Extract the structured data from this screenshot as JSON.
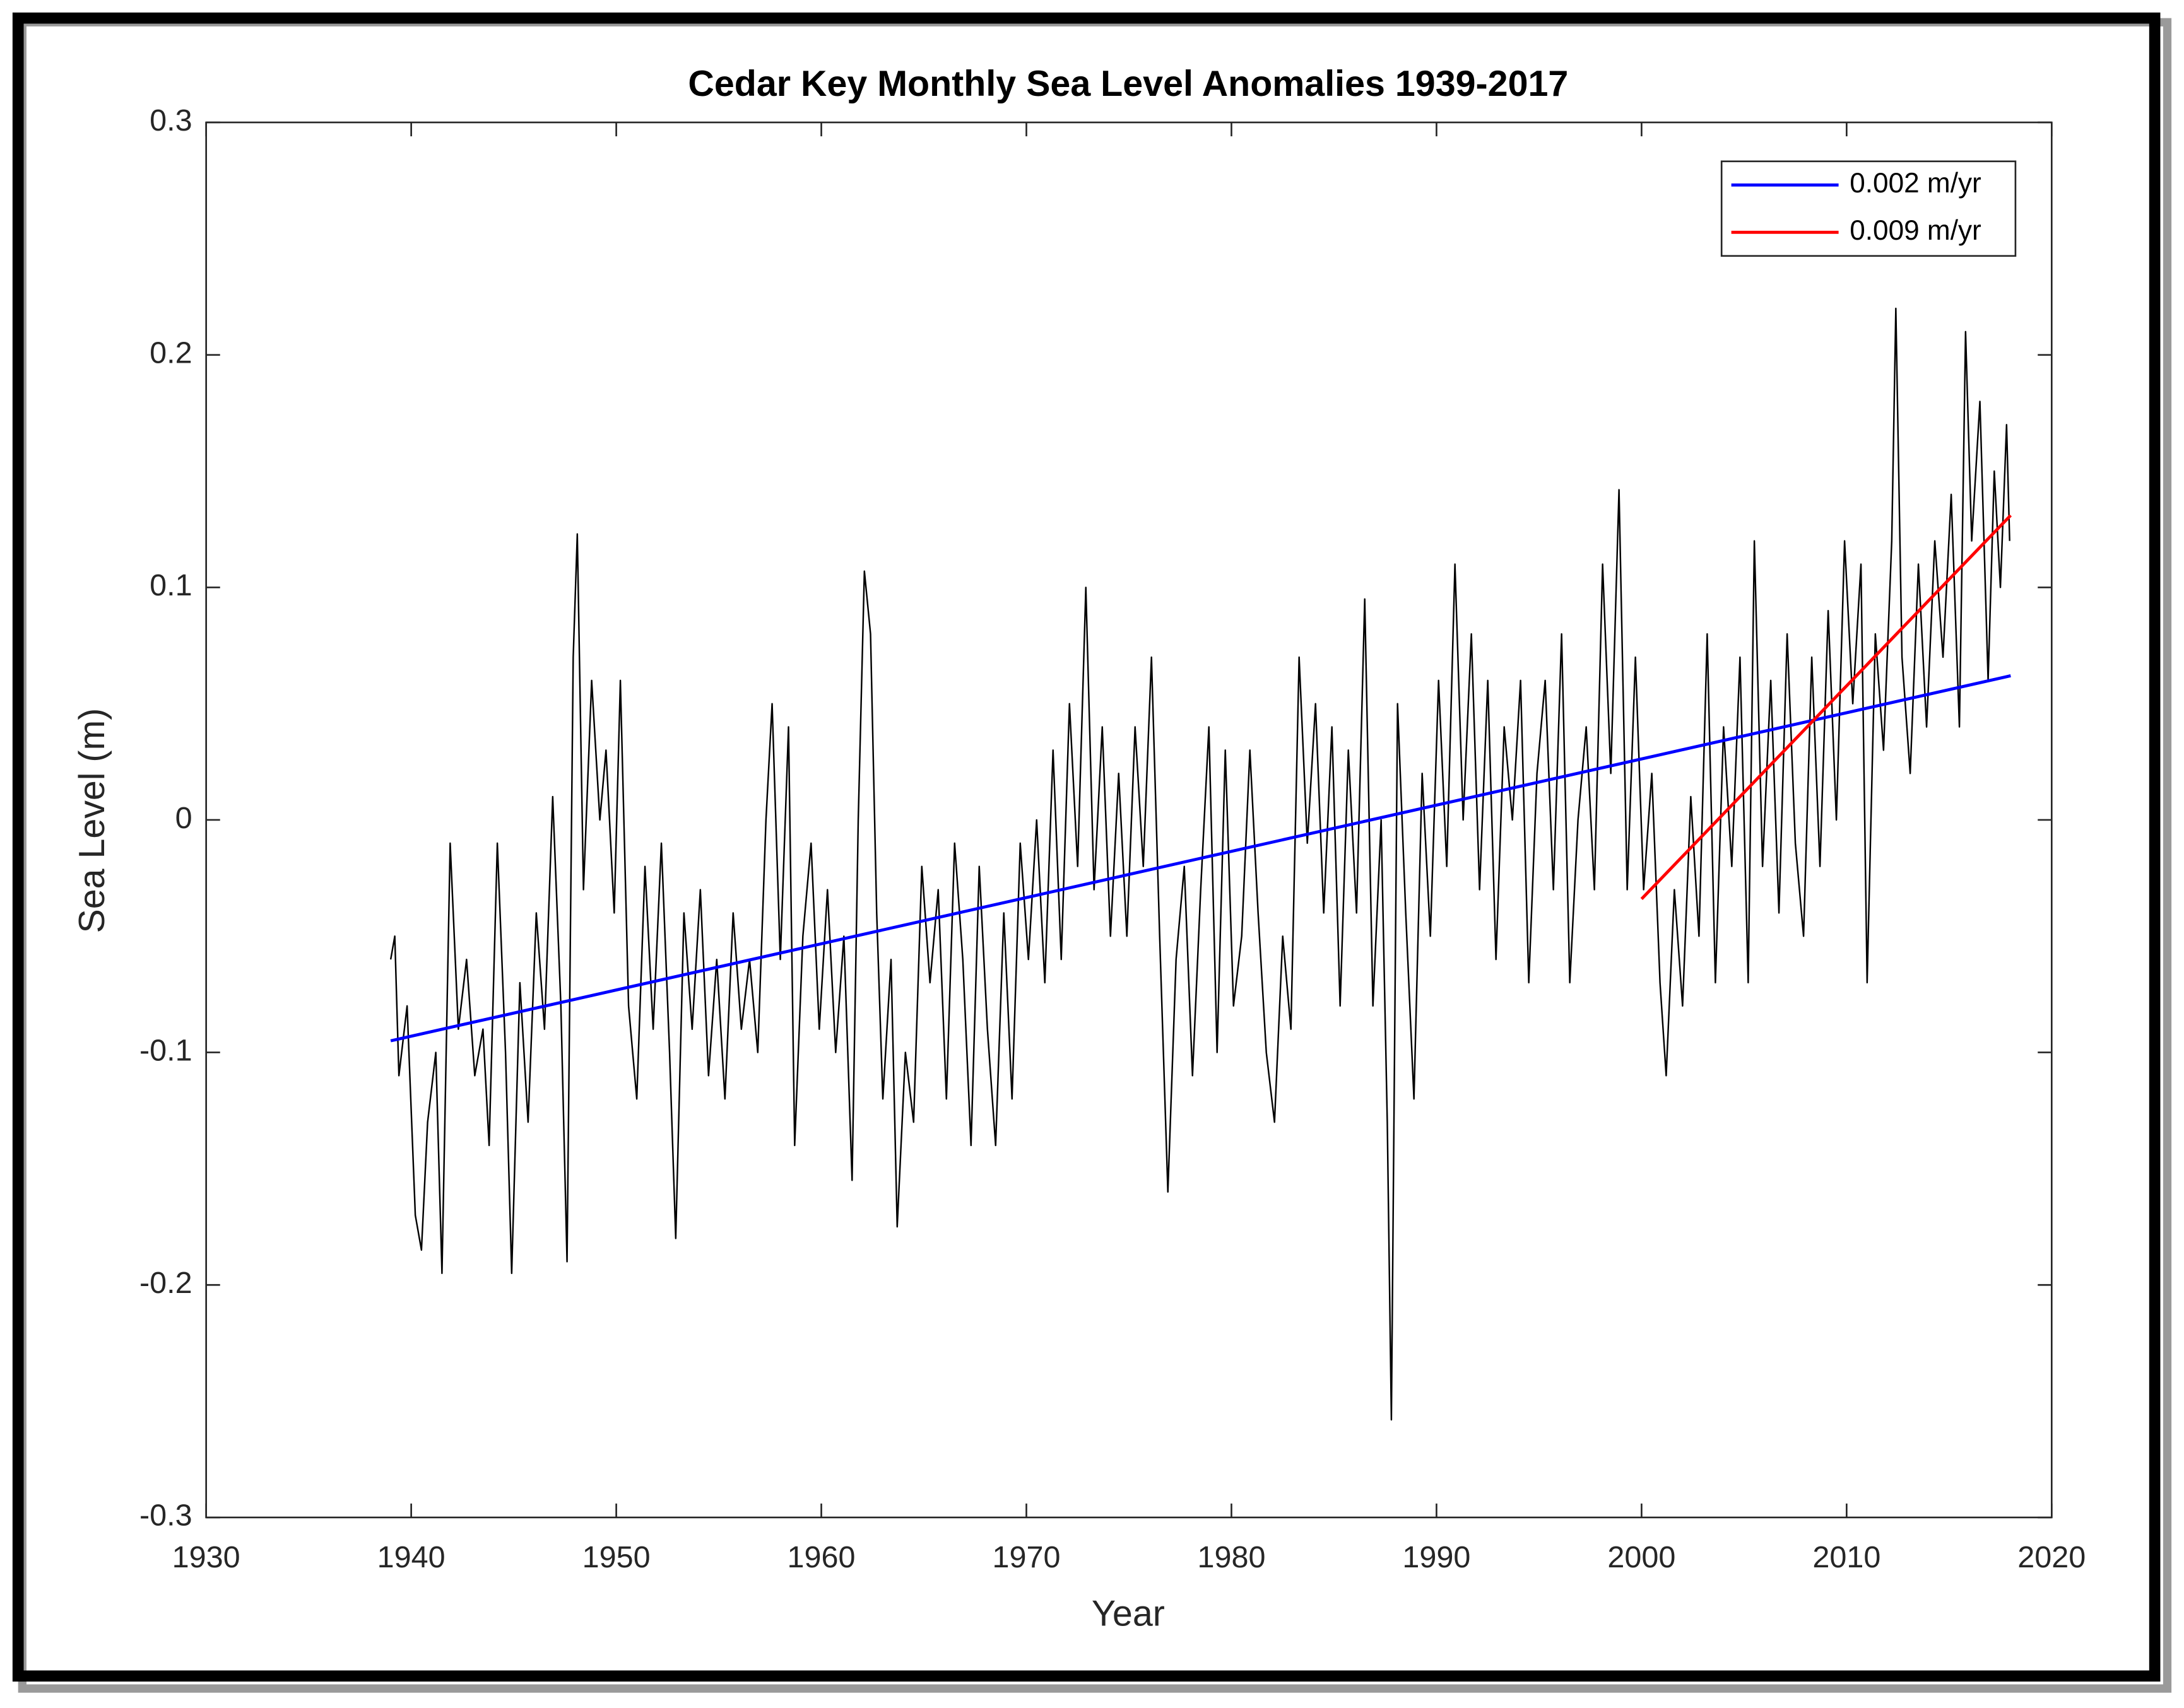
{
  "chart_data": {
    "type": "line",
    "title": "Cedar Key Monthly Sea Level Anomalies 1939-2017",
    "xlabel": "Year",
    "ylabel": "Sea Level (m)",
    "xlim": [
      1930,
      2020
    ],
    "xticks": [
      1930,
      1940,
      1950,
      1960,
      1970,
      1980,
      1990,
      2000,
      2010,
      2020
    ],
    "ylim": [
      -0.3,
      0.3
    ],
    "yticks": [
      -0.3,
      -0.2,
      -0.1,
      0,
      0.1,
      0.2,
      0.3
    ],
    "legend": "upper right",
    "series": [
      {
        "color": "#000000",
        "x": [
          1939.0,
          1939.2,
          1939.4,
          1939.8,
          1940.2,
          1940.5,
          1940.8,
          1941.2,
          1941.5,
          1941.9,
          1942.3,
          1942.7,
          1943.1,
          1943.5,
          1943.8,
          1944.2,
          1944.6,
          1944.9,
          1945.3,
          1945.7,
          1946.1,
          1946.5,
          1946.9,
          1947.3,
          1947.6,
          1947.9,
          1948.1,
          1948.4,
          1948.8,
          1949.2,
          1949.5,
          1949.9,
          1950.2,
          1950.6,
          1951.0,
          1951.4,
          1951.8,
          1952.2,
          1952.6,
          1952.9,
          1953.3,
          1953.7,
          1954.1,
          1954.5,
          1954.9,
          1955.3,
          1955.7,
          1956.1,
          1956.5,
          1956.9,
          1957.3,
          1957.6,
          1958.0,
          1958.4,
          1958.7,
          1959.1,
          1959.5,
          1959.9,
          1960.3,
          1960.7,
          1961.1,
          1961.5,
          1961.8,
          1962.1,
          1962.4,
          1962.7,
          1963.0,
          1963.4,
          1963.7,
          1964.1,
          1964.5,
          1964.9,
          1965.3,
          1965.7,
          1966.1,
          1966.5,
          1966.9,
          1967.3,
          1967.7,
          1968.1,
          1968.5,
          1968.9,
          1969.3,
          1969.7,
          1970.1,
          1970.5,
          1970.9,
          1971.3,
          1971.7,
          1972.1,
          1972.5,
          1972.9,
          1973.3,
          1973.7,
          1974.1,
          1974.5,
          1974.9,
          1975.3,
          1975.7,
          1976.1,
          1976.5,
          1976.9,
          1977.3,
          1977.7,
          1978.1,
          1978.5,
          1978.9,
          1979.3,
          1979.7,
          1980.1,
          1980.5,
          1980.9,
          1981.3,
          1981.7,
          1982.1,
          1982.5,
          1982.9,
          1983.3,
          1983.7,
          1984.1,
          1984.5,
          1984.9,
          1985.3,
          1985.7,
          1986.1,
          1986.5,
          1986.9,
          1987.3,
          1987.6,
          1987.8,
          1988.1,
          1988.5,
          1988.9,
          1989.3,
          1989.7,
          1990.1,
          1990.5,
          1990.9,
          1991.3,
          1991.7,
          1992.1,
          1992.5,
          1992.9,
          1993.3,
          1993.7,
          1994.1,
          1994.5,
          1994.9,
          1995.3,
          1995.7,
          1996.1,
          1996.5,
          1996.9,
          1997.3,
          1997.7,
          1998.1,
          1998.5,
          1998.9,
          1999.3,
          1999.7,
          2000.1,
          2000.5,
          2000.9,
          2001.2,
          2001.6,
          2002.0,
          2002.4,
          2002.8,
          2003.2,
          2003.6,
          2004.0,
          2004.4,
          2004.8,
          2005.2,
          2005.5,
          2005.9,
          2006.3,
          2006.7,
          2007.1,
          2007.5,
          2007.9,
          2008.3,
          2008.7,
          2009.1,
          2009.5,
          2009.9,
          2010.3,
          2010.7,
          2011.0,
          2011.4,
          2011.8,
          2012.2,
          2012.4,
          2012.7,
          2013.1,
          2013.5,
          2013.9,
          2014.3,
          2014.7,
          2015.1,
          2015.5,
          2015.8,
          2016.1,
          2016.5,
          2016.9,
          2017.2,
          2017.5,
          2017.8,
          2017.95
        ],
        "values": [
          -0.06,
          -0.05,
          -0.11,
          -0.08,
          -0.17,
          -0.185,
          -0.13,
          -0.1,
          -0.195,
          -0.01,
          -0.09,
          -0.06,
          -0.11,
          -0.09,
          -0.14,
          -0.01,
          -0.1,
          -0.195,
          -0.07,
          -0.13,
          -0.04,
          -0.09,
          0.01,
          -0.08,
          -0.19,
          0.07,
          0.123,
          -0.03,
          0.06,
          0.0,
          0.03,
          -0.04,
          0.06,
          -0.08,
          -0.12,
          -0.02,
          -0.09,
          -0.01,
          -0.1,
          -0.18,
          -0.04,
          -0.09,
          -0.03,
          -0.11,
          -0.06,
          -0.12,
          -0.04,
          -0.09,
          -0.06,
          -0.1,
          0.0,
          0.05,
          -0.06,
          0.04,
          -0.14,
          -0.05,
          -0.01,
          -0.09,
          -0.03,
          -0.1,
          -0.05,
          -0.155,
          0.0,
          0.107,
          0.08,
          -0.04,
          -0.12,
          -0.06,
          -0.175,
          -0.1,
          -0.13,
          -0.02,
          -0.07,
          -0.03,
          -0.12,
          -0.01,
          -0.06,
          -0.14,
          -0.02,
          -0.09,
          -0.14,
          -0.04,
          -0.12,
          -0.01,
          -0.06,
          0.0,
          -0.07,
          0.03,
          -0.06,
          0.05,
          -0.02,
          0.1,
          -0.03,
          0.04,
          -0.05,
          0.02,
          -0.05,
          0.04,
          -0.02,
          0.07,
          -0.05,
          -0.16,
          -0.06,
          -0.02,
          -0.11,
          -0.03,
          0.04,
          -0.1,
          0.03,
          -0.08,
          -0.05,
          0.03,
          -0.04,
          -0.1,
          -0.13,
          -0.05,
          -0.09,
          0.07,
          -0.01,
          0.05,
          -0.04,
          0.04,
          -0.08,
          0.03,
          -0.04,
          0.095,
          -0.08,
          0.0,
          -0.13,
          -0.258,
          0.05,
          -0.04,
          -0.12,
          0.02,
          -0.05,
          0.06,
          -0.02,
          0.11,
          0.0,
          0.08,
          -0.03,
          0.06,
          -0.06,
          0.04,
          0.0,
          0.06,
          -0.07,
          0.02,
          0.06,
          -0.03,
          0.08,
          -0.07,
          0.0,
          0.04,
          -0.03,
          0.11,
          0.02,
          0.142,
          -0.03,
          0.07,
          -0.03,
          0.02,
          -0.07,
          -0.11,
          -0.03,
          -0.08,
          0.01,
          -0.05,
          0.08,
          -0.07,
          0.04,
          -0.02,
          0.07,
          -0.07,
          0.12,
          -0.02,
          0.06,
          -0.04,
          0.08,
          -0.01,
          -0.05,
          0.07,
          -0.02,
          0.09,
          0.0,
          0.12,
          0.05,
          0.11,
          -0.07,
          0.08,
          0.03,
          0.12,
          0.22,
          0.07,
          0.02,
          0.11,
          0.04,
          0.12,
          0.07,
          0.14,
          0.04,
          0.21,
          0.12,
          0.18,
          0.06,
          0.15,
          0.1,
          0.17,
          0.12
        ]
      },
      {
        "name": "0.002 m/yr",
        "color": "#0000ff",
        "x": [
          1939,
          2018
        ],
        "values": [
          -0.095,
          0.062
        ]
      },
      {
        "name": "0.009 m/yr",
        "color": "#ff0000",
        "x": [
          2000,
          2018
        ],
        "values": [
          -0.034,
          0.131
        ]
      }
    ]
  }
}
